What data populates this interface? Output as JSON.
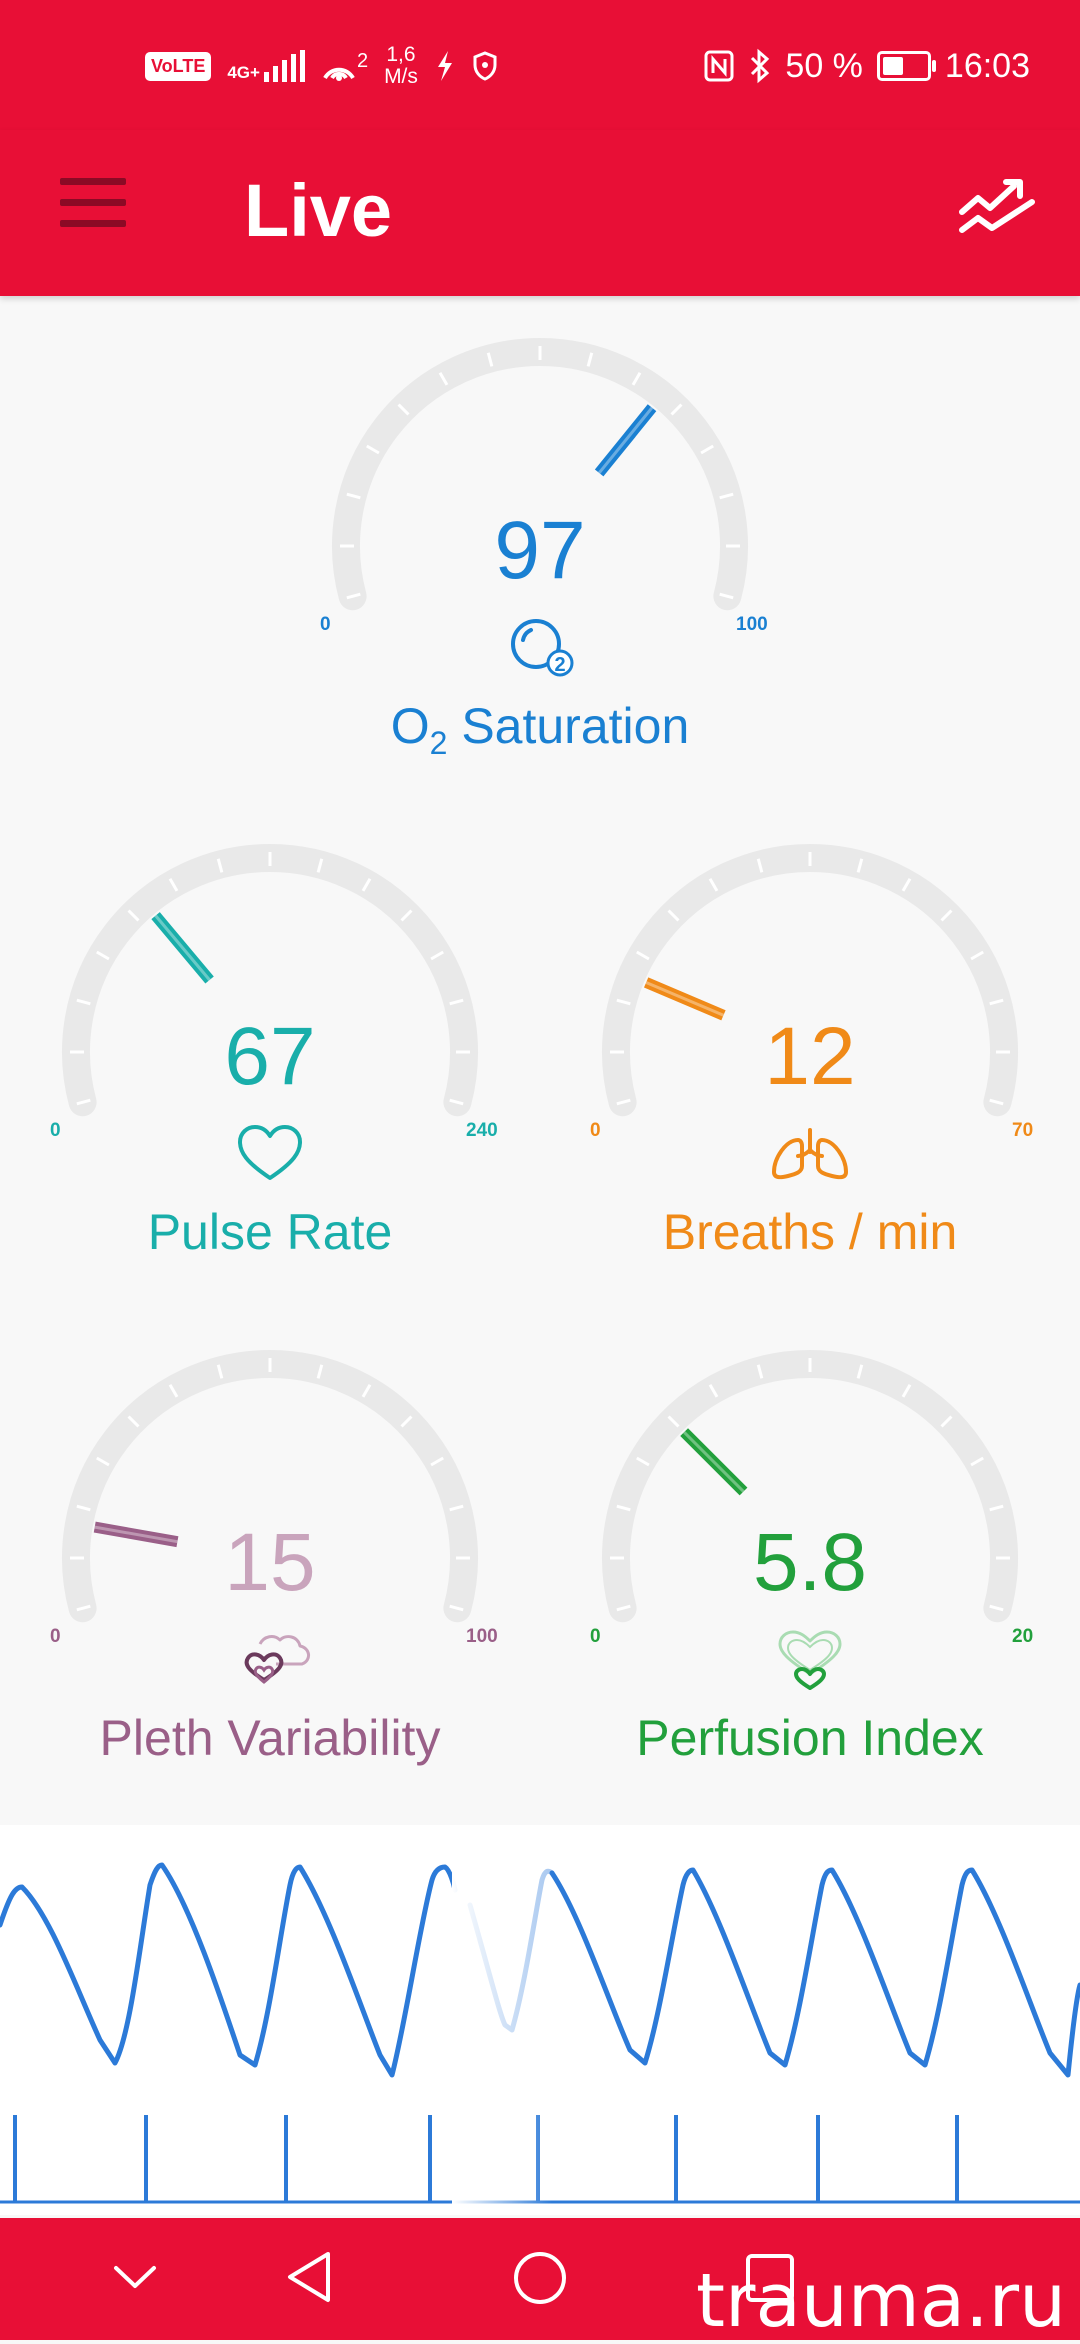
{
  "status_bar": {
    "volte": "VoLTE",
    "network": "4G+",
    "hotspot_count": "2",
    "speed_value": "1,6",
    "speed_unit": "M/s",
    "battery": "50 %",
    "battery_level": 0.5,
    "time": "16:03",
    "icons": [
      "nfc-icon",
      "bluetooth-icon",
      "vpn-icon",
      "shield-icon"
    ]
  },
  "app_bar": {
    "title": "Live",
    "menu_icon": "hamburger-menu-icon",
    "action_icon": "trend-chart-icon"
  },
  "gauges": {
    "spo2": {
      "value": "97",
      "min": "0",
      "max": "100",
      "label_main": "O",
      "label_sub": "2",
      "label_rest": " Saturation",
      "color": "#1a80d2",
      "icon": "o2-bubble-icon"
    },
    "pulse": {
      "value": "67",
      "min": "0",
      "max": "240",
      "label": "Pulse Rate",
      "color": "#19aeaa",
      "icon": "heart-icon"
    },
    "breaths": {
      "value": "12",
      "min": "0",
      "max": "70",
      "label": "Breaths / min",
      "color": "#f08a18",
      "icon": "lungs-icon"
    },
    "pleth": {
      "value": "15",
      "min": "0",
      "max": "100",
      "label": "Pleth Variability",
      "color": "#9a5f88",
      "value_color": "#c9a4bc",
      "icon": "pleth-hearts-icon"
    },
    "perfusion": {
      "value": "5.8",
      "min": "0",
      "max": "20",
      "label": "Perfusion Index",
      "color": "#22a03c",
      "icon": "perfusion-heart-icon"
    }
  },
  "waveform": {
    "color": "#2c7ad8",
    "icon": "pleth-waveform"
  },
  "nav_bar": {
    "icons": [
      "collapse-down-icon",
      "back-icon",
      "home-icon",
      "recents-icon"
    ]
  },
  "watermark": "trauma.ru"
}
